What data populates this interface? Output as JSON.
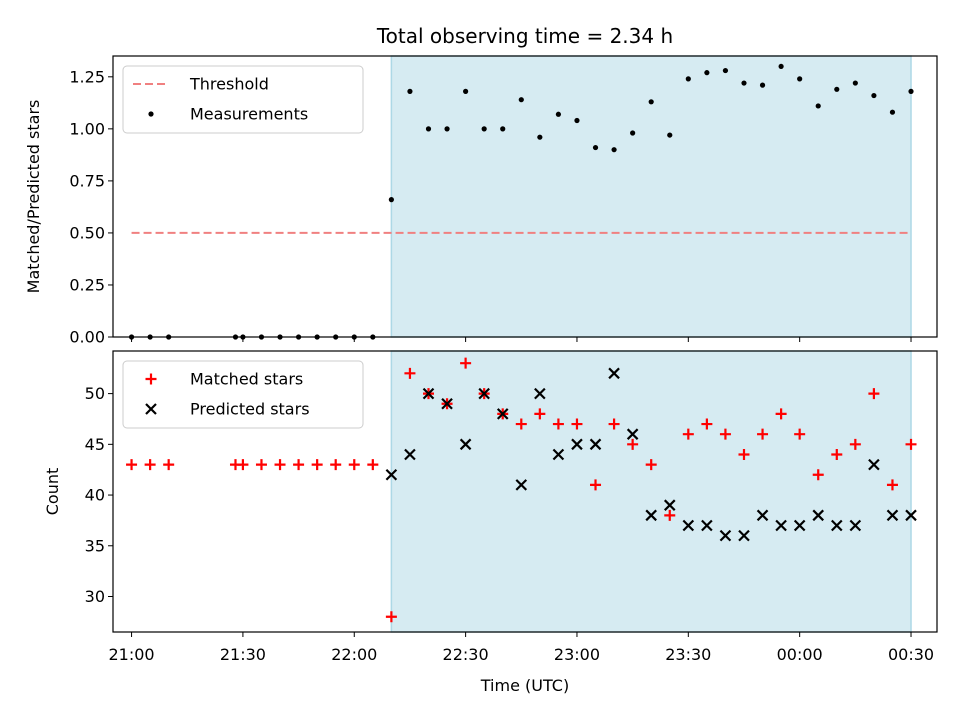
{
  "chart_data": [
    {
      "type": "scatter",
      "title": "Total observing time = 2.34 h",
      "ylabel": "Matched/Predicted stars",
      "xlabel": "",
      "xlim": [
        "20:55",
        "00:37"
      ],
      "ylim": [
        0,
        1.35
      ],
      "yticks": [
        "0.00",
        "0.25",
        "0.50",
        "0.75",
        "1.00",
        "1.25"
      ],
      "ytick_values": [
        0,
        0.25,
        0.5,
        0.75,
        1.0,
        1.25
      ],
      "legend": {
        "placement": "upper-left",
        "entries": [
          "Threshold",
          "Measurements"
        ]
      },
      "shaded_span": {
        "from": "22:10",
        "to": "00:30",
        "color": "#add8e6"
      },
      "series": [
        {
          "name": "Threshold",
          "style": "dashed-line",
          "color": "#f08080",
          "points": [
            [
              "21:00",
              0.5
            ],
            [
              "00:30",
              0.5
            ]
          ]
        },
        {
          "name": "Measurements",
          "style": "dots",
          "color": "#000000",
          "points": [
            [
              "21:00",
              0.0
            ],
            [
              "21:05",
              0.0
            ],
            [
              "21:10",
              0.0
            ],
            [
              "21:28",
              0.0
            ],
            [
              "21:30",
              0.0
            ],
            [
              "21:35",
              0.0
            ],
            [
              "21:40",
              0.0
            ],
            [
              "21:45",
              0.0
            ],
            [
              "21:50",
              0.0
            ],
            [
              "21:55",
              0.0
            ],
            [
              "22:00",
              0.0
            ],
            [
              "22:05",
              0.0
            ],
            [
              "22:10",
              0.66
            ],
            [
              "22:15",
              1.18
            ],
            [
              "22:20",
              1.0
            ],
            [
              "22:25",
              1.0
            ],
            [
              "22:30",
              1.18
            ],
            [
              "22:35",
              1.0
            ],
            [
              "22:40",
              1.0
            ],
            [
              "22:45",
              1.14
            ],
            [
              "22:50",
              0.96
            ],
            [
              "22:55",
              1.07
            ],
            [
              "23:00",
              1.04
            ],
            [
              "23:05",
              0.91
            ],
            [
              "23:10",
              0.9
            ],
            [
              "23:15",
              0.98
            ],
            [
              "23:20",
              1.13
            ],
            [
              "23:25",
              0.97
            ],
            [
              "23:30",
              1.24
            ],
            [
              "23:35",
              1.27
            ],
            [
              "23:40",
              1.28
            ],
            [
              "23:45",
              1.22
            ],
            [
              "23:50",
              1.21
            ],
            [
              "23:55",
              1.3
            ],
            [
              "00:00",
              1.24
            ],
            [
              "00:05",
              1.11
            ],
            [
              "00:10",
              1.19
            ],
            [
              "00:15",
              1.22
            ],
            [
              "00:20",
              1.16
            ],
            [
              "00:25",
              1.08
            ],
            [
              "00:30",
              1.18
            ]
          ]
        }
      ]
    },
    {
      "type": "scatter",
      "title": "",
      "ylabel": "Count",
      "xlabel": "Time (UTC)",
      "xlim": [
        "20:55",
        "00:37"
      ],
      "ylim": [
        26.5,
        54.2
      ],
      "yticks": [
        "30",
        "35",
        "40",
        "45",
        "50"
      ],
      "ytick_values": [
        30,
        35,
        40,
        45,
        50
      ],
      "xticks": [
        "21:00",
        "21:30",
        "22:00",
        "22:30",
        "23:00",
        "23:30",
        "00:00",
        "00:30"
      ],
      "legend": {
        "placement": "upper-left",
        "entries": [
          "Matched stars",
          "Predicted stars"
        ]
      },
      "shaded_span": {
        "from": "22:10",
        "to": "00:30",
        "color": "#add8e6"
      },
      "series": [
        {
          "name": "Matched stars",
          "style": "plus",
          "color": "#ff0000",
          "points": [
            [
              "21:00",
              43
            ],
            [
              "21:05",
              43
            ],
            [
              "21:10",
              43
            ],
            [
              "21:28",
              43
            ],
            [
              "21:30",
              43
            ],
            [
              "21:35",
              43
            ],
            [
              "21:40",
              43
            ],
            [
              "21:45",
              43
            ],
            [
              "21:50",
              43
            ],
            [
              "21:55",
              43
            ],
            [
              "22:00",
              43
            ],
            [
              "22:05",
              43
            ],
            [
              "22:10",
              28
            ],
            [
              "22:15",
              52
            ],
            [
              "22:20",
              50
            ],
            [
              "22:25",
              49
            ],
            [
              "22:30",
              53
            ],
            [
              "22:35",
              50
            ],
            [
              "22:40",
              48
            ],
            [
              "22:45",
              47
            ],
            [
              "22:50",
              48
            ],
            [
              "22:55",
              47
            ],
            [
              "23:00",
              47
            ],
            [
              "23:05",
              41
            ],
            [
              "23:10",
              47
            ],
            [
              "23:15",
              45
            ],
            [
              "23:20",
              43
            ],
            [
              "23:25",
              38
            ],
            [
              "23:30",
              46
            ],
            [
              "23:35",
              47
            ],
            [
              "23:40",
              46
            ],
            [
              "23:45",
              44
            ],
            [
              "23:50",
              46
            ],
            [
              "23:55",
              48
            ],
            [
              "00:00",
              46
            ],
            [
              "00:05",
              42
            ],
            [
              "00:10",
              44
            ],
            [
              "00:15",
              45
            ],
            [
              "00:20",
              50
            ],
            [
              "00:25",
              41
            ],
            [
              "00:30",
              45
            ]
          ]
        },
        {
          "name": "Predicted stars",
          "style": "x",
          "color": "#000000",
          "points": [
            [
              "22:10",
              42
            ],
            [
              "22:15",
              44
            ],
            [
              "22:20",
              50
            ],
            [
              "22:25",
              49
            ],
            [
              "22:30",
              45
            ],
            [
              "22:35",
              50
            ],
            [
              "22:40",
              48
            ],
            [
              "22:45",
              41
            ],
            [
              "22:50",
              50
            ],
            [
              "22:55",
              44
            ],
            [
              "23:00",
              45
            ],
            [
              "23:05",
              45
            ],
            [
              "23:10",
              52
            ],
            [
              "23:15",
              46
            ],
            [
              "23:20",
              38
            ],
            [
              "23:25",
              39
            ],
            [
              "23:30",
              37
            ],
            [
              "23:35",
              37
            ],
            [
              "23:40",
              36
            ],
            [
              "23:45",
              36
            ],
            [
              "23:50",
              38
            ],
            [
              "23:55",
              37
            ],
            [
              "00:00",
              37
            ],
            [
              "00:05",
              38
            ],
            [
              "00:10",
              37
            ],
            [
              "00:15",
              37
            ],
            [
              "00:20",
              43
            ],
            [
              "00:25",
              38
            ],
            [
              "00:30",
              38
            ]
          ]
        }
      ]
    }
  ]
}
